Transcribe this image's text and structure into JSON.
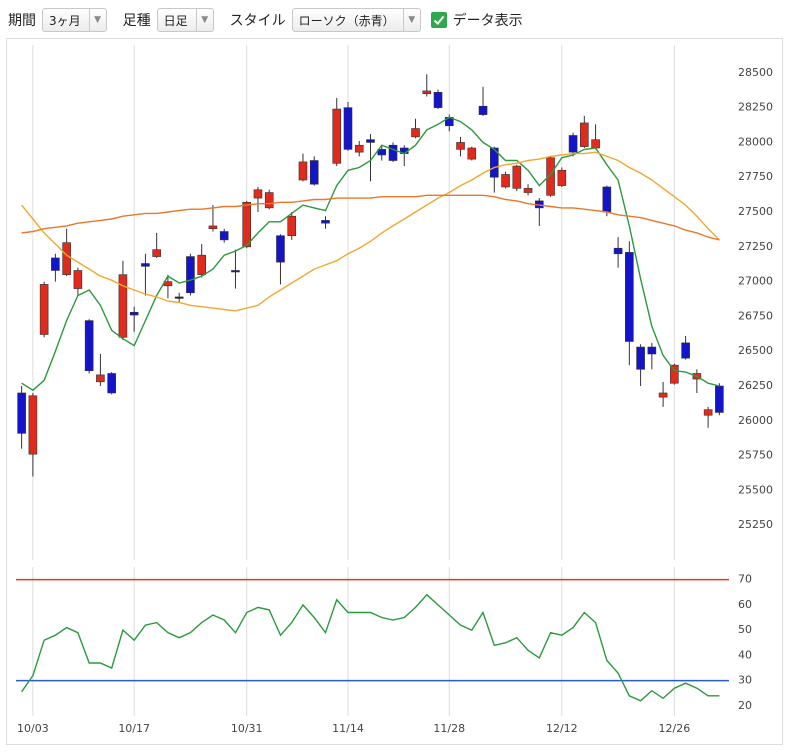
{
  "toolbar": {
    "period_label": "期間",
    "period": "3ヶ月",
    "bar_label": "足種",
    "bar": "日足",
    "style_label": "スタイル",
    "style": "ローソク（赤青）",
    "data_label": "データ表示"
  },
  "chart_data": [
    {
      "type": "candlestick",
      "open": [
        26200,
        25760,
        26620,
        27170,
        27050,
        26950,
        26720,
        26280,
        26340,
        26600,
        26780,
        27130,
        27180,
        26970,
        26890,
        27180,
        27050,
        27380,
        27360,
        27080,
        27250,
        27600,
        27530,
        27330,
        27330,
        27730,
        27870,
        27440,
        27850,
        28250,
        27930,
        28020,
        27950,
        27980,
        27960,
        28040,
        28350,
        28360,
        28180,
        27950,
        27880,
        28260,
        27960,
        27680,
        27670,
        27640,
        27580,
        27620,
        27690,
        28050,
        27970,
        27960,
        27680,
        27240,
        27210,
        26530,
        26530,
        26170,
        26270,
        26560,
        26300,
        26040,
        26250
      ],
      "high": [
        26250,
        26200,
        27000,
        27200,
        27380,
        27100,
        26730,
        26480,
        26350,
        27150,
        26820,
        27200,
        27350,
        27050,
        26920,
        27200,
        27270,
        27550,
        27380,
        27230,
        27580,
        27680,
        27660,
        27340,
        27500,
        27920,
        27900,
        27470,
        28320,
        28290,
        28010,
        28060,
        27980,
        28000,
        27980,
        28170,
        28490,
        28380,
        28200,
        28040,
        27970,
        28400,
        27970,
        27790,
        27840,
        27700,
        27600,
        27900,
        27820,
        28070,
        28190,
        28130,
        27690,
        27320,
        27290,
        26550,
        26560,
        26280,
        26410,
        26610,
        26370,
        26100,
        26270
      ],
      "low": [
        25800,
        25600,
        26600,
        27000,
        27040,
        26900,
        26340,
        26250,
        26190,
        26580,
        26640,
        26900,
        27170,
        26880,
        26850,
        26900,
        27030,
        27360,
        27280,
        26950,
        27240,
        27500,
        27520,
        26980,
        27300,
        27720,
        27690,
        27380,
        27830,
        27940,
        27900,
        27720,
        27870,
        27860,
        27830,
        28030,
        28330,
        28240,
        28080,
        27900,
        27870,
        28190,
        27640,
        27670,
        27650,
        27620,
        27400,
        27610,
        27680,
        27900,
        27960,
        27950,
        27470,
        27100,
        26400,
        26250,
        26370,
        26100,
        26260,
        26440,
        26200,
        25950,
        26040
      ],
      "close": [
        25910,
        26180,
        26980,
        27080,
        27280,
        27080,
        26360,
        26330,
        26200,
        27050,
        26760,
        27110,
        27230,
        27000,
        26880,
        26920,
        27190,
        27400,
        27300,
        27070,
        27570,
        27660,
        27640,
        27140,
        27470,
        27860,
        27700,
        27420,
        28240,
        27950,
        27980,
        28000,
        27910,
        27870,
        27920,
        28100,
        28370,
        28250,
        28120,
        28000,
        27960,
        28200,
        27750,
        27770,
        27830,
        27670,
        27530,
        27890,
        27800,
        27930,
        28140,
        28020,
        27500,
        27200,
        26570,
        26370,
        26480,
        26200,
        26400,
        26450,
        26340,
        26080,
        26060
      ],
      "up_color": "#e02a1c",
      "down_color": "#1414c8",
      "series": [
        {
          "color": "#2a9a3e",
          "values": [
            26270,
            26220,
            26290,
            26500,
            26720,
            26900,
            26940,
            26830,
            26650,
            26590,
            26540,
            26720,
            26900,
            27040,
            26990,
            27010,
            27040,
            27090,
            27190,
            27220,
            27260,
            27350,
            27430,
            27430,
            27490,
            27550,
            27530,
            27510,
            27690,
            27800,
            27820,
            27870,
            27980,
            27950,
            27920,
            27980,
            28090,
            28130,
            28180,
            28150,
            28090,
            28000,
            27950,
            27870,
            27870,
            27800,
            27690,
            27770,
            27890,
            27910,
            27950,
            27960,
            27840,
            27730,
            27400,
            27020,
            26680,
            26470,
            26360,
            26350,
            26320,
            26270,
            26250
          ]
        },
        {
          "color": "#f0a830",
          "values": [
            27550,
            27450,
            27350,
            27270,
            27190,
            27140,
            27090,
            27040,
            27010,
            26970,
            26940,
            26910,
            26890,
            26860,
            26850,
            26830,
            26820,
            26810,
            26800,
            26790,
            26810,
            26830,
            26890,
            26940,
            26990,
            27040,
            27090,
            27120,
            27150,
            27200,
            27240,
            27290,
            27350,
            27400,
            27450,
            27500,
            27550,
            27600,
            27640,
            27690,
            27730,
            27780,
            27820,
            27840,
            27850,
            27870,
            27880,
            27900,
            27910,
            27920,
            27920,
            27930,
            27900,
            27870,
            27820,
            27780,
            27730,
            27670,
            27610,
            27550,
            27470,
            27380,
            27300
          ]
        },
        {
          "color": "#e8782a",
          "values": [
            27350,
            27360,
            27380,
            27390,
            27400,
            27420,
            27430,
            27440,
            27450,
            27470,
            27480,
            27490,
            27490,
            27500,
            27510,
            27520,
            27520,
            27530,
            27540,
            27540,
            27550,
            27560,
            27560,
            27570,
            27570,
            27580,
            27590,
            27590,
            27600,
            27600,
            27600,
            27600,
            27610,
            27610,
            27610,
            27610,
            27620,
            27620,
            27620,
            27620,
            27620,
            27620,
            27610,
            27590,
            27580,
            27560,
            27550,
            27540,
            27530,
            27530,
            27520,
            27510,
            27500,
            27480,
            27470,
            27460,
            27440,
            27420,
            27400,
            27370,
            27350,
            27320,
            27300
          ]
        }
      ],
      "ylim": [
        25000,
        28700
      ],
      "yticks": [
        25250,
        25500,
        25750,
        26000,
        26250,
        26500,
        26750,
        27000,
        27250,
        27500,
        27750,
        28000,
        28250,
        28500
      ],
      "grid": "x"
    },
    {
      "type": "line",
      "categories": [
        null,
        "10/03",
        null,
        null,
        null,
        null,
        null,
        null,
        null,
        null,
        "10/17",
        null,
        null,
        null,
        null,
        null,
        null,
        null,
        null,
        null,
        "10/31",
        null,
        null,
        null,
        null,
        null,
        null,
        null,
        null,
        "11/14",
        null,
        null,
        null,
        null,
        null,
        null,
        null,
        null,
        "11/28",
        null,
        null,
        null,
        null,
        null,
        null,
        null,
        null,
        null,
        "12/12",
        null,
        null,
        null,
        null,
        null,
        null,
        null,
        null,
        null,
        "12/26",
        null,
        null,
        null,
        null
      ],
      "series": [
        {
          "color": "#2a9a3e",
          "values": [
            25.6,
            32,
            46,
            48,
            51,
            49,
            37,
            37,
            35,
            50,
            46,
            52,
            53,
            49,
            47,
            49,
            53,
            56,
            54,
            49,
            57,
            59,
            58,
            48,
            53,
            60,
            55,
            49,
            62,
            57,
            57,
            57,
            55,
            54,
            55,
            59,
            64,
            60,
            56,
            52,
            50,
            57,
            44,
            45,
            47,
            42,
            39,
            49,
            48,
            51,
            57,
            53,
            38,
            33,
            24,
            22,
            26,
            23,
            27,
            29,
            27,
            24,
            24
          ]
        }
      ],
      "hlines": [
        {
          "value": 70,
          "color": "#d8401c"
        },
        {
          "value": 30,
          "color": "#2a5cc8"
        }
      ],
      "ylim": [
        16,
        75
      ],
      "yticks": [
        20,
        30,
        40,
        50,
        60,
        70
      ],
      "grid": "x"
    }
  ]
}
